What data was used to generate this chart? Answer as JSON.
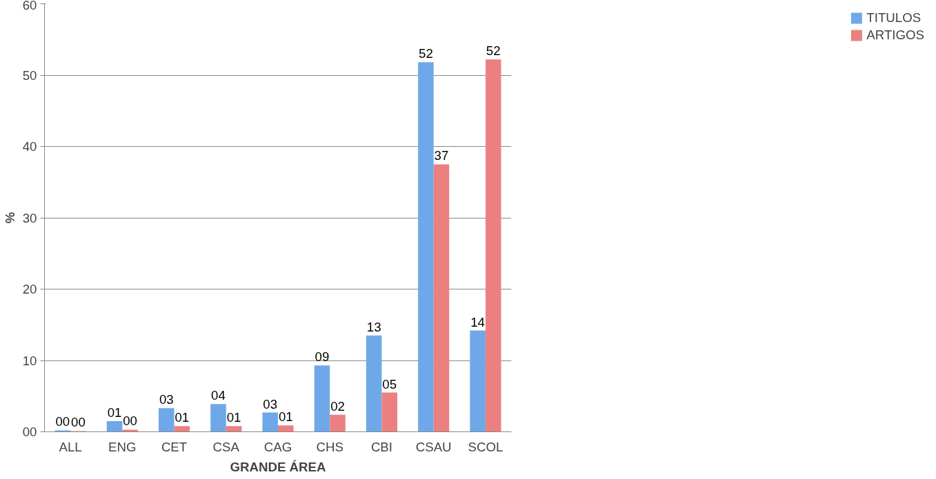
{
  "chart_data": {
    "type": "bar",
    "xlabel": "GRANDE ÁREA",
    "ylabel": "%",
    "categories": [
      "ALL",
      "ENG",
      "CET",
      "CSA",
      "CAG",
      "CHS",
      "CBI",
      "CSAU",
      "SCOL"
    ],
    "series": [
      {
        "name": "TITULOS",
        "color": "#6fa8e8",
        "values": [
          0.2,
          1.5,
          3.3,
          3.9,
          2.7,
          9.3,
          13.5,
          51.8,
          14.2
        ],
        "value_labels": [
          "00",
          "01",
          "03",
          "04",
          "03",
          "09",
          "13",
          "52",
          "14"
        ]
      },
      {
        "name": "ARTIGOS",
        "color": "#ec8080",
        "values": [
          0.1,
          0.3,
          0.8,
          0.8,
          0.9,
          2.4,
          5.5,
          37.5,
          52.2
        ],
        "value_labels": [
          "00",
          "00",
          "01",
          "01",
          "01",
          "02",
          "05",
          "37",
          "52"
        ]
      }
    ],
    "ylim": [
      0,
      60
    ],
    "yticks": [
      {
        "value": 0,
        "label": "00"
      },
      10,
      20,
      30,
      40,
      50,
      60
    ],
    "grid": "y",
    "legend": "right"
  }
}
